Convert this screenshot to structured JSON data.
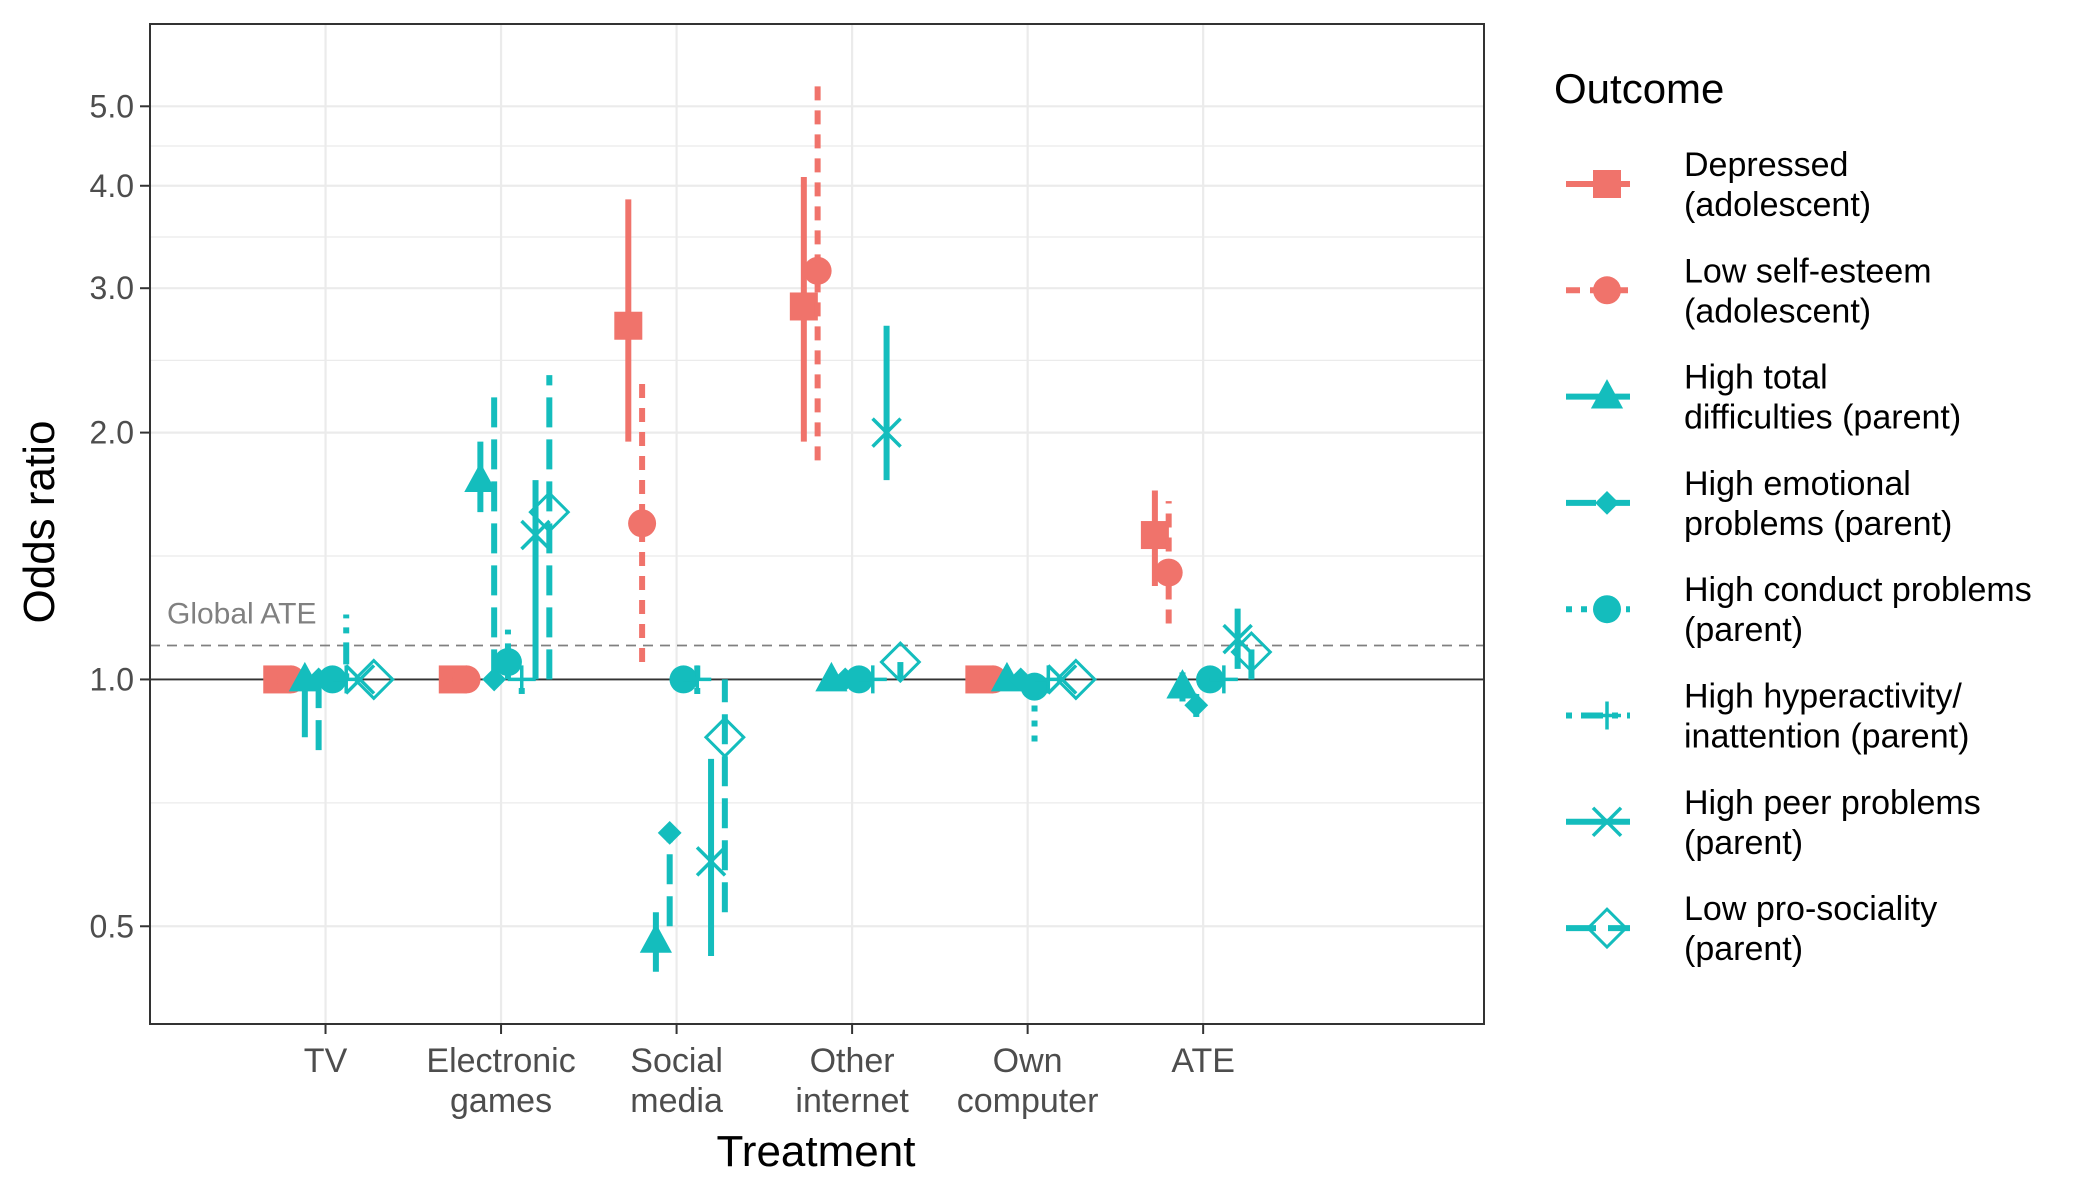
{
  "chart_data": {
    "type": "errorbar-point",
    "xlabel": "Treatment",
    "ylabel": "Odds ratio",
    "y_scale": "log",
    "ylim": [
      0.38,
      6.3
    ],
    "yticks": [
      {
        "value": 0.5,
        "label": "0.5"
      },
      {
        "value": 1.0,
        "label": "1.0"
      },
      {
        "value": 2.0,
        "label": "2.0"
      },
      {
        "value": 3.0,
        "label": "3.0"
      },
      {
        "value": 4.0,
        "label": "4.0"
      },
      {
        "value": 5.0,
        "label": "5.0"
      }
    ],
    "categories": [
      {
        "lines": [
          "TV"
        ]
      },
      {
        "lines": [
          "Electronic",
          "games"
        ]
      },
      {
        "lines": [
          "Social",
          "media"
        ]
      },
      {
        "lines": [
          "Other",
          "internet"
        ]
      },
      {
        "lines": [
          "Own",
          "computer"
        ]
      },
      {
        "lines": [
          "ATE"
        ]
      }
    ],
    "reference_lines": {
      "null_effect": 1.0,
      "global_ate": 1.1,
      "global_ate_label": "Global ATE"
    },
    "legend": {
      "title": "Outcome",
      "position": "right"
    },
    "colors": {
      "adolescent": "#F0736B",
      "parent": "#14BDBD",
      "grid": "#EBEBEB",
      "axis": "#333333",
      "ate_line": "#808080"
    },
    "series": [
      {
        "name": "Depressed (adolescent)",
        "legend_lines": [
          "Depressed",
          "(adolescent)"
        ],
        "group": "adolescent",
        "shape": "square",
        "linetype": "solid",
        "points": [
          {
            "estimate": 1.0,
            "lower": 1.0,
            "upper": 1.0
          },
          {
            "estimate": 1.0,
            "lower": 1.0,
            "upper": 1.0
          },
          {
            "estimate": 2.7,
            "lower": 1.95,
            "upper": 3.85
          },
          {
            "estimate": 2.85,
            "lower": 1.95,
            "upper": 4.1
          },
          {
            "estimate": 1.0,
            "lower": 1.0,
            "upper": 1.0
          },
          {
            "estimate": 1.5,
            "lower": 1.3,
            "upper": 1.7
          }
        ]
      },
      {
        "name": "Low self-esteem (adolescent)",
        "legend_lines": [
          "Low self-esteem",
          "(adolescent)"
        ],
        "group": "adolescent",
        "shape": "circle",
        "linetype": "dashed",
        "points": [
          {
            "estimate": 1.0,
            "lower": 1.0,
            "upper": 1.0
          },
          {
            "estimate": 1.0,
            "lower": 1.0,
            "upper": 1.0
          },
          {
            "estimate": 1.55,
            "lower": 1.05,
            "upper": 2.35
          },
          {
            "estimate": 3.15,
            "lower": 1.85,
            "upper": 5.35
          },
          {
            "estimate": 1.0,
            "lower": 1.0,
            "upper": 1.0
          },
          {
            "estimate": 1.35,
            "lower": 1.17,
            "upper": 1.65
          }
        ]
      },
      {
        "name": "High total difficulties (parent)",
        "legend_lines": [
          "High total",
          "difficulties (parent)"
        ],
        "group": "parent",
        "shape": "triangle",
        "linetype": "solid",
        "points": [
          {
            "estimate": 1.0,
            "lower": 0.85,
            "upper": 1.0
          },
          {
            "estimate": 1.75,
            "lower": 1.6,
            "upper": 1.95
          },
          {
            "estimate": 0.48,
            "lower": 0.44,
            "upper": 0.52
          },
          {
            "estimate": 1.0,
            "lower": 1.0,
            "upper": 1.0
          },
          {
            "estimate": 1.0,
            "lower": 1.0,
            "upper": 1.0
          },
          {
            "estimate": 0.98,
            "lower": 0.94,
            "upper": 1.02
          }
        ]
      },
      {
        "name": "High emotional problems (parent)",
        "legend_lines": [
          "High emotional",
          "problems (parent)"
        ],
        "group": "parent",
        "shape": "diamond",
        "linetype": "longdash",
        "points": [
          {
            "estimate": 1.0,
            "lower": 0.82,
            "upper": 1.0
          },
          {
            "estimate": 1.0,
            "lower": 1.0,
            "upper": 2.25
          },
          {
            "estimate": 0.65,
            "lower": 0.5,
            "upper": 0.66
          },
          {
            "estimate": 1.0,
            "lower": 1.0,
            "upper": 1.0
          },
          {
            "estimate": 1.0,
            "lower": 1.0,
            "upper": 1.0
          },
          {
            "estimate": 0.93,
            "lower": 0.9,
            "upper": 0.96
          }
        ]
      },
      {
        "name": "High conduct problems (parent)",
        "legend_lines": [
          "High conduct problems",
          "(parent)"
        ],
        "group": "parent",
        "shape": "circle",
        "linetype": "dotted",
        "points": [
          {
            "estimate": 1.0,
            "lower": 1.0,
            "upper": 1.0
          },
          {
            "estimate": 1.05,
            "lower": 1.0,
            "upper": 1.15
          },
          {
            "estimate": 1.0,
            "lower": 1.0,
            "upper": 1.0
          },
          {
            "estimate": 1.0,
            "lower": 1.0,
            "upper": 1.0
          },
          {
            "estimate": 0.98,
            "lower": 0.84,
            "upper": 1.02
          },
          {
            "estimate": 1.0,
            "lower": 0.98,
            "upper": 1.03
          }
        ]
      },
      {
        "name": "High hyperactivity/ inattention (parent)",
        "legend_lines": [
          "High hyperactivity/",
          "inattention (parent)"
        ],
        "group": "parent",
        "shape": "plus",
        "linetype": "dotdash",
        "points": [
          {
            "estimate": 1.0,
            "lower": 1.0,
            "upper": 1.2
          },
          {
            "estimate": 1.0,
            "lower": 0.96,
            "upper": 1.0
          },
          {
            "estimate": 1.0,
            "lower": 0.96,
            "upper": 1.04
          },
          {
            "estimate": 1.0,
            "lower": 1.0,
            "upper": 1.0
          },
          {
            "estimate": 1.0,
            "lower": 1.0,
            "upper": 1.0
          },
          {
            "estimate": 1.0,
            "lower": 1.0,
            "upper": 1.0
          }
        ]
      },
      {
        "name": "High peer problems (parent)",
        "legend_lines": [
          "High peer problems",
          "(parent)"
        ],
        "group": "parent",
        "shape": "x",
        "linetype": "solid",
        "points": [
          {
            "estimate": 1.0,
            "lower": 1.0,
            "upper": 1.0
          },
          {
            "estimate": 1.5,
            "lower": 1.0,
            "upper": 1.75
          },
          {
            "estimate": 0.6,
            "lower": 0.46,
            "upper": 0.8
          },
          {
            "estimate": 2.0,
            "lower": 1.75,
            "upper": 2.7
          },
          {
            "estimate": 1.0,
            "lower": 1.0,
            "upper": 1.0
          },
          {
            "estimate": 1.12,
            "lower": 1.03,
            "upper": 1.22
          }
        ]
      },
      {
        "name": "Low pro-sociality (parent)",
        "legend_lines": [
          "Low pro-sociality",
          "(parent)"
        ],
        "group": "parent",
        "shape": "diamond-open",
        "linetype": "longdash",
        "points": [
          {
            "estimate": 1.0,
            "lower": 1.0,
            "upper": 1.0
          },
          {
            "estimate": 1.6,
            "lower": 1.0,
            "upper": 2.35
          },
          {
            "estimate": 0.85,
            "lower": 0.52,
            "upper": 1.0
          },
          {
            "estimate": 1.05,
            "lower": 1.0,
            "upper": 1.05
          },
          {
            "estimate": 1.0,
            "lower": 1.0,
            "upper": 1.0
          },
          {
            "estimate": 1.08,
            "lower": 1.0,
            "upper": 1.12
          }
        ]
      }
    ]
  }
}
